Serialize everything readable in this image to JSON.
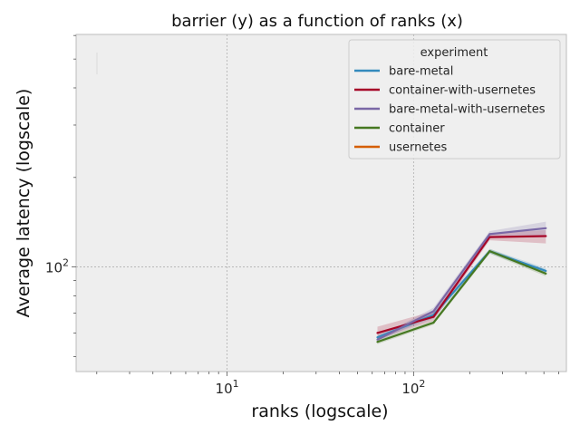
{
  "chart_data": {
    "type": "line",
    "title": "barrier (y) as a function of ranks (x)",
    "xlabel": "ranks (logscale)",
    "ylabel": "Average latency (logscale)",
    "xscale": "log",
    "yscale": "log",
    "xlim": [
      1.55,
      660
    ],
    "ylim": [
      44.5,
      605
    ],
    "x_ticks": [
      {
        "value": 10,
        "label": "10",
        "sup": "1"
      },
      {
        "value": 100,
        "label": "10",
        "sup": "2"
      }
    ],
    "y_ticks": [
      {
        "value": 100,
        "label": "10",
        "sup": "2"
      }
    ],
    "grid": true,
    "legend": {
      "title": "experiment",
      "position": "top-right"
    },
    "series": [
      {
        "name": "bare-metal",
        "color": "#348ABD",
        "x": [
          64,
          128,
          256,
          512
        ],
        "y": [
          58,
          69,
          113,
          97
        ],
        "band": [
          [
            57,
            59
          ],
          [
            67,
            71
          ],
          [
            111,
            115
          ],
          [
            95,
            99
          ]
        ]
      },
      {
        "name": "container-with-usernetes",
        "color": "#A60628",
        "x": [
          64,
          128,
          256,
          512
        ],
        "y": [
          60,
          68,
          126,
          127
        ],
        "band": [
          [
            57,
            63
          ],
          [
            66,
            71
          ],
          [
            123,
            130
          ],
          [
            120,
            133
          ]
        ]
      },
      {
        "name": "bare-metal-with-usernetes",
        "color": "#7A68A6",
        "x": [
          64,
          128,
          256,
          512
        ],
        "y": [
          57,
          71,
          129,
          135
        ],
        "band": [
          [
            56,
            58
          ],
          [
            69,
            73
          ],
          [
            125,
            132
          ],
          [
            128,
            142
          ]
        ]
      },
      {
        "name": "container",
        "color": "#467821",
        "x": [
          64,
          128,
          256,
          512
        ],
        "y": [
          56,
          65,
          113,
          95
        ],
        "band": [
          [
            55,
            57
          ],
          [
            64,
            66
          ],
          [
            111,
            115
          ],
          [
            93,
            97
          ]
        ]
      },
      {
        "name": "usernetes",
        "color": "#D55E00",
        "x": [],
        "y": [],
        "band": []
      }
    ]
  }
}
